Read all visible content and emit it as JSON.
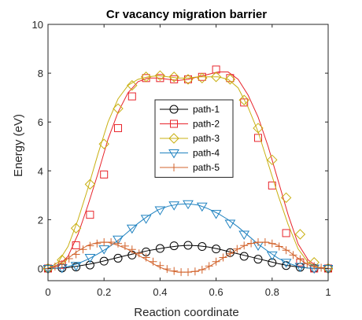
{
  "chart_data": {
    "type": "line",
    "title": "Cr vacancy migration barrier",
    "xlabel": "Reaction coordinate",
    "ylabel": "Energy (eV)",
    "xlim": [
      0,
      1
    ],
    "ylim": [
      -0.5,
      10
    ],
    "xticks": [
      0,
      0.2,
      0.4,
      0.6,
      0.8,
      1
    ],
    "xtick_labels": [
      "0",
      "0.2",
      "0.4",
      "0.6",
      "0.8",
      "1"
    ],
    "yticks": [
      0,
      2,
      4,
      6,
      8,
      10
    ],
    "ytick_labels": [
      "0",
      "2",
      "4",
      "6",
      "8",
      "10"
    ],
    "grid": false,
    "legend_position": "center",
    "series": [
      {
        "name": "path-1",
        "color": "#000000",
        "marker": "circle",
        "x": [
          0,
          0.0357,
          0.0714,
          0.1071,
          0.1429,
          0.1786,
          0.2143,
          0.25,
          0.2857,
          0.3214,
          0.3571,
          0.3929,
          0.4286,
          0.4643,
          0.5,
          0.5357,
          0.5714,
          0.6071,
          0.6429,
          0.6786,
          0.7143,
          0.75,
          0.7857,
          0.8214,
          0.8571,
          0.8929,
          0.9286,
          0.9643,
          1
        ],
        "y": [
          0.0,
          0.01,
          0.04,
          0.1,
          0.17,
          0.25,
          0.35,
          0.45,
          0.55,
          0.64,
          0.73,
          0.8,
          0.87,
          0.92,
          0.95,
          0.93,
          0.88,
          0.8,
          0.7,
          0.6,
          0.5,
          0.4,
          0.3,
          0.2,
          0.12,
          0.06,
          0.02,
          0.0,
          0.0
        ],
        "marker_x": [
          0,
          0.05,
          0.1,
          0.15,
          0.2,
          0.25,
          0.3,
          0.35,
          0.4,
          0.45,
          0.5,
          0.55,
          0.6,
          0.65,
          0.7,
          0.75,
          0.8,
          0.85,
          0.9,
          0.95,
          1
        ],
        "marker_y": [
          0.0,
          0.02,
          0.06,
          0.14,
          0.3,
          0.42,
          0.55,
          0.68,
          0.82,
          0.93,
          0.95,
          0.9,
          0.8,
          0.65,
          0.5,
          0.38,
          0.24,
          0.12,
          0.05,
          0.01,
          0.0
        ]
      },
      {
        "name": "path-2",
        "color": "#e8242b",
        "marker": "square",
        "x": [
          0,
          0.0357,
          0.0714,
          0.1071,
          0.1429,
          0.1786,
          0.2143,
          0.25,
          0.2857,
          0.3214,
          0.3571,
          0.3929,
          0.4286,
          0.4643,
          0.5,
          0.5357,
          0.5714,
          0.6071,
          0.6429,
          0.6786,
          0.7143,
          0.75,
          0.7857,
          0.8214,
          0.8571,
          0.8929,
          0.9286,
          0.9643,
          1
        ],
        "y": [
          0.0,
          0.1,
          0.5,
          1.4,
          2.6,
          3.9,
          5.3,
          6.4,
          7.2,
          7.65,
          7.8,
          7.8,
          7.75,
          7.7,
          7.75,
          7.85,
          7.95,
          8.05,
          8.05,
          7.75,
          7.1,
          6.2,
          5.0,
          3.6,
          2.2,
          1.0,
          0.35,
          0.05,
          0.0
        ],
        "marker_x": [
          0,
          0.05,
          0.1,
          0.15,
          0.2,
          0.25,
          0.3,
          0.35,
          0.4,
          0.45,
          0.5,
          0.55,
          0.6,
          0.65,
          0.7,
          0.75,
          0.8,
          0.85,
          0.9,
          0.95,
          1
        ],
        "marker_y": [
          0.0,
          0.15,
          0.95,
          2.2,
          3.85,
          5.75,
          7.05,
          7.8,
          7.8,
          7.75,
          7.75,
          7.85,
          8.15,
          7.8,
          6.8,
          5.35,
          3.4,
          1.45,
          0.25,
          0.0,
          0.0
        ]
      },
      {
        "name": "path-3",
        "color": "#c9b012",
        "marker": "diamond",
        "x": [
          0,
          0.0357,
          0.0714,
          0.1071,
          0.1429,
          0.1786,
          0.2143,
          0.25,
          0.2857,
          0.3214,
          0.3571,
          0.3929,
          0.4286,
          0.4643,
          0.5,
          0.5357,
          0.5714,
          0.6071,
          0.6429,
          0.6786,
          0.7143,
          0.75,
          0.7857,
          0.8214,
          0.8571,
          0.8929,
          0.9286,
          0.9643,
          1
        ],
        "y": [
          0.0,
          0.25,
          0.9,
          2.0,
          3.3,
          4.7,
          6.0,
          6.95,
          7.5,
          7.75,
          7.85,
          7.9,
          7.85,
          7.8,
          7.8,
          7.85,
          7.85,
          7.85,
          7.75,
          7.4,
          6.6,
          5.6,
          4.3,
          3.0,
          1.8,
          0.8,
          0.25,
          0.05,
          0.0
        ],
        "marker_x": [
          0,
          0.05,
          0.1,
          0.15,
          0.2,
          0.25,
          0.3,
          0.35,
          0.4,
          0.45,
          0.5,
          0.55,
          0.6,
          0.65,
          0.7,
          0.75,
          0.8,
          0.85,
          0.9,
          0.95,
          1
        ],
        "marker_y": [
          0.0,
          0.35,
          1.65,
          3.45,
          5.1,
          6.55,
          7.5,
          7.85,
          7.9,
          7.85,
          7.75,
          7.8,
          7.85,
          7.75,
          6.9,
          5.75,
          4.45,
          2.9,
          1.4,
          0.25,
          0.0
        ]
      },
      {
        "name": "path-4",
        "color": "#1f82c0",
        "marker": "triangle-down",
        "x": [
          0,
          0.0357,
          0.0714,
          0.1071,
          0.1429,
          0.1786,
          0.2143,
          0.25,
          0.2857,
          0.3214,
          0.3571,
          0.3929,
          0.4286,
          0.4643,
          0.5,
          0.5357,
          0.5714,
          0.6071,
          0.6429,
          0.6786,
          0.7143,
          0.75,
          0.7857,
          0.8214,
          0.8571,
          0.8929,
          0.9286,
          0.9643,
          1
        ],
        "y": [
          0.0,
          0.02,
          0.08,
          0.2,
          0.38,
          0.6,
          0.85,
          1.15,
          1.5,
          1.85,
          2.15,
          2.4,
          2.55,
          2.63,
          2.65,
          2.6,
          2.45,
          2.25,
          2.0,
          1.7,
          1.35,
          1.0,
          0.7,
          0.42,
          0.22,
          0.08,
          0.02,
          0.0,
          0.0
        ],
        "marker_x": [
          0,
          0.05,
          0.1,
          0.15,
          0.2,
          0.25,
          0.3,
          0.35,
          0.4,
          0.45,
          0.5,
          0.55,
          0.6,
          0.65,
          0.7,
          0.75,
          0.8,
          0.85,
          0.9,
          0.95,
          1
        ],
        "marker_y": [
          0.0,
          0.03,
          0.12,
          0.45,
          0.8,
          1.2,
          1.65,
          2.05,
          2.4,
          2.6,
          2.65,
          2.55,
          2.25,
          1.85,
          1.4,
          0.95,
          0.55,
          0.25,
          0.08,
          0.01,
          0.0
        ]
      },
      {
        "name": "path-5",
        "color": "#d2632c",
        "marker": "plus",
        "x": [
          0,
          0.0357,
          0.0714,
          0.1071,
          0.1429,
          0.1786,
          0.2143,
          0.25,
          0.2857,
          0.3214,
          0.3571,
          0.3929,
          0.4286,
          0.4643,
          0.5,
          0.5357,
          0.5714,
          0.6071,
          0.6429,
          0.6786,
          0.7143,
          0.75,
          0.7857,
          0.8214,
          0.8571,
          0.8929,
          0.9286,
          0.9643,
          1
        ],
        "y": [
          0.0,
          0.15,
          0.42,
          0.72,
          0.95,
          1.07,
          1.07,
          0.95,
          0.78,
          0.55,
          0.32,
          0.08,
          -0.08,
          -0.15,
          -0.15,
          -0.1,
          0.05,
          0.3,
          0.55,
          0.8,
          1.0,
          1.07,
          1.07,
          0.95,
          0.72,
          0.42,
          0.15,
          0.02,
          0.0
        ],
        "marker_x": [
          0,
          0.025,
          0.05,
          0.075,
          0.1,
          0.125,
          0.15,
          0.175,
          0.2,
          0.225,
          0.25,
          0.275,
          0.3,
          0.325,
          0.35,
          0.375,
          0.4,
          0.425,
          0.45,
          0.475,
          0.5,
          0.525,
          0.55,
          0.575,
          0.6,
          0.625,
          0.65,
          0.675,
          0.7,
          0.725,
          0.75,
          0.775,
          0.8,
          0.825,
          0.85,
          0.875,
          0.9,
          0.925,
          0.95,
          0.975,
          1
        ],
        "marker_y": [
          0.0,
          0.08,
          0.18,
          0.4,
          0.58,
          0.78,
          0.93,
          1.02,
          1.08,
          1.08,
          1.02,
          0.92,
          0.78,
          0.62,
          0.45,
          0.28,
          0.12,
          -0.02,
          -0.1,
          -0.15,
          -0.15,
          -0.12,
          -0.05,
          0.1,
          0.28,
          0.45,
          0.62,
          0.8,
          0.94,
          1.03,
          1.08,
          1.08,
          1.02,
          0.9,
          0.75,
          0.55,
          0.38,
          0.2,
          0.1,
          0.03,
          0.0
        ]
      }
    ]
  }
}
